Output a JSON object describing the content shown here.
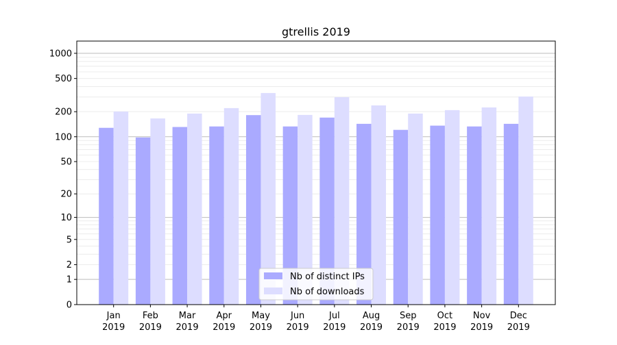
{
  "chart_data": {
    "type": "bar",
    "title": "gtrellis 2019",
    "xlabel": "",
    "ylabel": "",
    "y_scale": "log10(1+y)",
    "ylim": [
      0,
      1400
    ],
    "grid": true,
    "legend_position": "lower center",
    "y_ticks": [
      0,
      1,
      2,
      5,
      10,
      20,
      50,
      100,
      200,
      500,
      1000
    ],
    "categories": [
      [
        "Jan",
        "2019"
      ],
      [
        "Feb",
        "2019"
      ],
      [
        "Mar",
        "2019"
      ],
      [
        "Apr",
        "2019"
      ],
      [
        "May",
        "2019"
      ],
      [
        "Jun",
        "2019"
      ],
      [
        "Jul",
        "2019"
      ],
      [
        "Aug",
        "2019"
      ],
      [
        "Sep",
        "2019"
      ],
      [
        "Oct",
        "2019"
      ],
      [
        "Nov",
        "2019"
      ],
      [
        "Dec",
        "2019"
      ]
    ],
    "series": [
      {
        "name": "Nb of distinct IPs",
        "color": "#aaaaff",
        "values": [
          128,
          98,
          131,
          133,
          182,
          133,
          170,
          143,
          121,
          136,
          133,
          143
        ]
      },
      {
        "name": "Nb of downloads",
        "color": "#ddddff",
        "values": [
          201,
          166,
          190,
          221,
          335,
          183,
          299,
          238,
          190,
          209,
          225,
          304
        ]
      }
    ]
  }
}
